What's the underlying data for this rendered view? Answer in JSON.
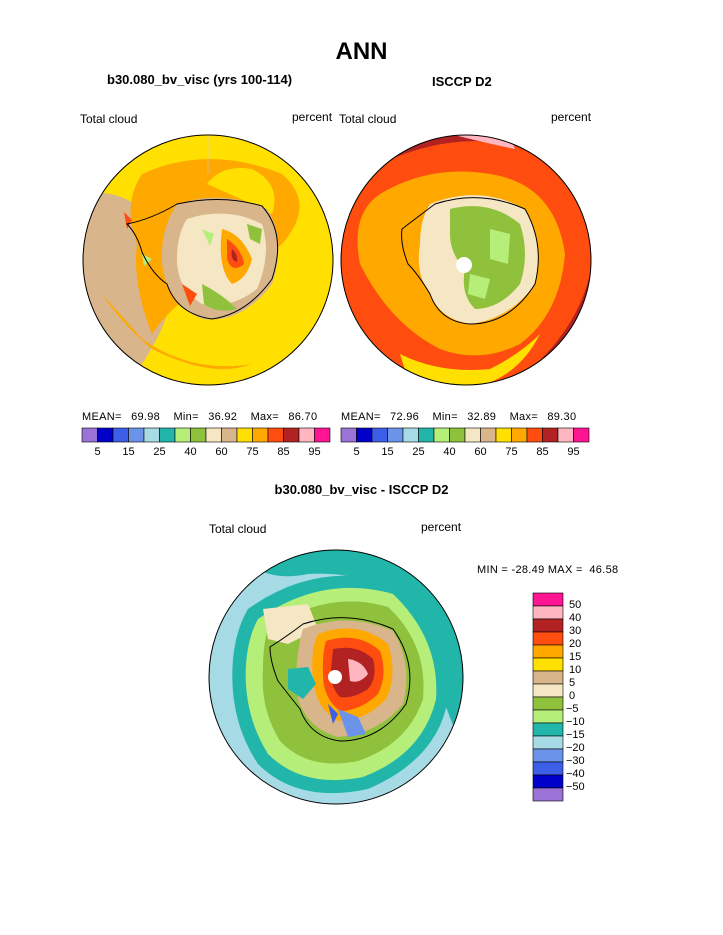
{
  "title": "ANN",
  "panels": [
    {
      "id": "model",
      "case_label": "b30.080_bv_visc (yrs 100-114)",
      "field_label": "Total cloud",
      "units_label": "percent",
      "stats": {
        "mean_label": "MEAN=",
        "mean": "69.98",
        "min_label": "Min=",
        "min": "36.92",
        "max_label": "Max=",
        "max": "86.70"
      }
    },
    {
      "id": "obs",
      "case_label": "ISCCP D2",
      "field_label": "Total cloud",
      "units_label": "percent",
      "stats": {
        "mean_label": "MEAN=",
        "mean": "72.96",
        "min_label": "Min=",
        "min": "32.89",
        "max_label": "Max=",
        "max": "89.30"
      }
    }
  ],
  "abs_colorbar": {
    "colors": [
      "#9b72d6",
      "#0000c8",
      "#3d5ee6",
      "#6b93ea",
      "#a6dbe5",
      "#22b6aa",
      "#b5ef7a",
      "#8fc13c",
      "#f5e6c4",
      "#d8b58a",
      "#ffe000",
      "#ffa800",
      "#ff4d0f",
      "#b22222",
      "#ffb6c1",
      "#ff1493"
    ],
    "tick_labels": [
      "5",
      "15",
      "25",
      "40",
      "60",
      "75",
      "85",
      "95"
    ]
  },
  "diff_panel": {
    "case_label": "b30.080_bv_visc - ISCCP D2",
    "field_label": "Total cloud",
    "units_label": "percent",
    "min_max_text": "MIN = -28.49 MAX =  46.58"
  },
  "diff_colorbar": {
    "colors": [
      "#ff1493",
      "#ffb6c1",
      "#b22222",
      "#ff4d0f",
      "#ffa800",
      "#ffe000",
      "#d8b58a",
      "#f5e6c4",
      "#8fc13c",
      "#b5ef7a",
      "#22b6aa",
      "#a6dbe5",
      "#6b93ea",
      "#3d5ee6",
      "#0000c8",
      "#9b72d6"
    ],
    "tick_labels": [
      "50",
      "40",
      "30",
      "20",
      "15",
      "10",
      "5",
      "0",
      "−5",
      "−10",
      "−15",
      "−20",
      "−30",
      "−40",
      "−50"
    ]
  }
}
